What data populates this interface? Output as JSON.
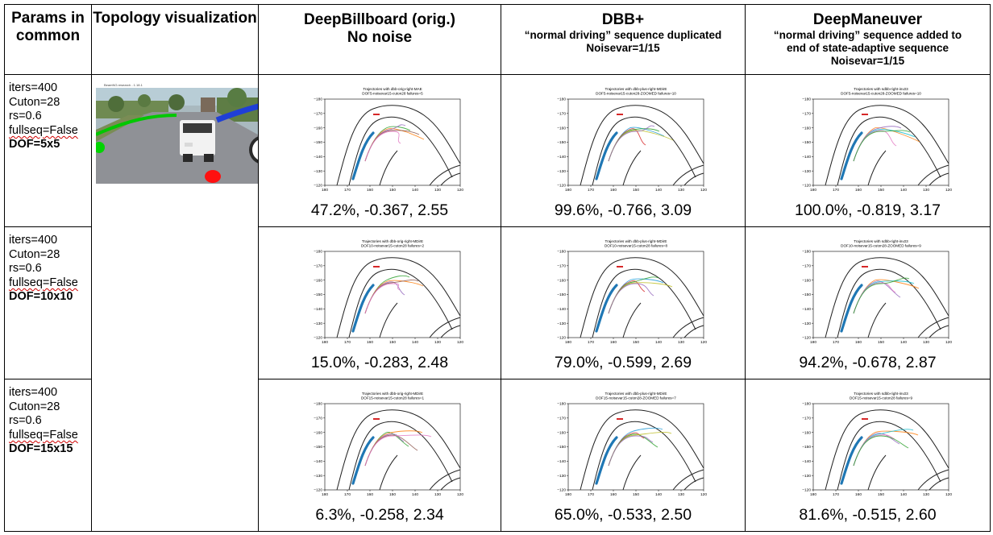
{
  "headers": {
    "params": "Params in common",
    "topology": "Topology visualization",
    "col1": {
      "title1": "DeepBillboard (orig.)",
      "title2": "No noise"
    },
    "col2": {
      "title": "DBB+",
      "sub1": "“normal driving” sequence duplicated",
      "sub2": "Noisevar=1/15"
    },
    "col3": {
      "title": "DeepManeuver",
      "sub1": "“normal driving” sequence added to",
      "sub2": "end of state-adaptive sequence",
      "sub3": "Noisevar=1/15"
    }
  },
  "topology_window_title": "BeamNG.research - 1.18.1",
  "colors": {
    "track": "#222222",
    "traj_main": "#1f77b4",
    "target": "#d62728",
    "grid_border": "#000000"
  },
  "rows": [
    {
      "params": {
        "iters": "iters=400",
        "cuton": "Cuton=28",
        "rs": "rs=0.6",
        "fullseq": "fullseq=False",
        "dof": "DOF=5x5"
      },
      "cells": [
        {
          "plot_title": "Trajectories with dbb-orig-right-MAE",
          "plot_sub": "DOF5-noisevar15-cuton28 failures=5",
          "metric": "47.2%, -0.367, 2.55"
        },
        {
          "plot_title": "Trajectories with dbb-plus-right-MDirE",
          "plot_sub": "DOF5-noisevar15-cuton28-ZOOMED failures=10",
          "metric": "99.6%, -0.766, 3.09"
        },
        {
          "plot_title": "Trajectories with sdbb-right-inv23",
          "plot_sub": "DOF5-noisevar15-cuton28-ZOOMED failures=10",
          "metric": "100.0%, -0.819, 3.17"
        }
      ]
    },
    {
      "params": {
        "iters": "iters=400",
        "cuton": "Cuton=28",
        "rs": "rs=0.6",
        "fullseq": "fullseq=False",
        "dof": "DOF=10x10"
      },
      "cells": [
        {
          "plot_title": "Trajectories with dbb-orig-right-MDirE",
          "plot_sub": "DOF10-noisevar15-cuton28 failures=2",
          "metric": "15.0%, -0.283, 2.48"
        },
        {
          "plot_title": "Trajectories with dbb-plus-right-MDirE",
          "plot_sub": "DOF10-noisevar15-cuton28 failures=8",
          "metric": "79.0%, -0.599, 2.69"
        },
        {
          "plot_title": "Trajectories with sdbb-right-inv23",
          "plot_sub": "DOF10-noisevar15-cuton28-ZOOMED failures=9",
          "metric": "94.2%, -0.678, 2.87"
        }
      ]
    },
    {
      "params": {
        "iters": "iters=400",
        "cuton": "Cuton=28",
        "rs": "rs=0.6",
        "fullseq": "fullseq=False",
        "dof": "DOF=15x15"
      },
      "cells": [
        {
          "plot_title": "Trajectories with dbb-orig-right-MDirE",
          "plot_sub": "DOF15-noisevar15-cuton28 failures=1",
          "metric": "6.3%, -0.258, 2.34"
        },
        {
          "plot_title": "Trajectories with dbb-plus-right-MDirE",
          "plot_sub": "DOF15-noisevar15-cuton28-ZOOMED failures=7",
          "metric": "65.0%, -0.533, 2.50"
        },
        {
          "plot_title": "Trajectories with sdbb-right-inv23",
          "plot_sub": "DOF15-noisevar15-cuton28 failures=9",
          "metric": "81.6%, -0.515, 2.60"
        }
      ]
    }
  ],
  "axes": {
    "x_ticks": [
      "180",
      "170",
      "160",
      "150",
      "140",
      "130",
      "120"
    ],
    "y_ticks": [
      "-180",
      "-170",
      "-160",
      "-150",
      "-140",
      "-130",
      "-120"
    ]
  }
}
